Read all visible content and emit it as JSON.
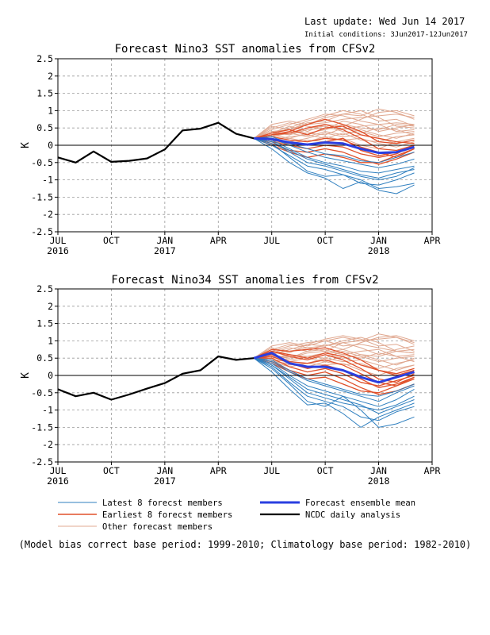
{
  "header": {
    "last_update": "Last update: Wed Jun 14 2017",
    "initial_conditions": "Initial conditions: 3Jun2017-12Jun2017"
  },
  "footer_note": "(Model bias correct base period: 1999-2010; Climatology base period: 1982-2010)",
  "colors": {
    "latest": "#2f7fbf",
    "earliest": "#e0502a",
    "other": "#e0a890",
    "mean": "#2a3fe0",
    "analysis": "#000000",
    "grid": "#9a9a9a"
  },
  "legend": [
    {
      "label": "Latest 8 forecst members",
      "key": "latest"
    },
    {
      "label": "Earliest 8 forecst members",
      "key": "earliest"
    },
    {
      "label": "Other forecast members",
      "key": "other"
    },
    {
      "label": "Forecast ensemble mean",
      "key": "mean"
    },
    {
      "label": "NCDC daily analysis",
      "key": "analysis"
    }
  ],
  "chart_data": [
    {
      "type": "line",
      "title": "Forecast Nino3 SST anomalies from CFSv2",
      "ylabel": "K",
      "ylim": [
        -2.5,
        2.5
      ],
      "yticks": [
        "2.5",
        "2",
        "1.5",
        "1",
        "0.5",
        "0",
        "-0.5",
        "-1",
        "-1.5",
        "-2",
        "-2.5"
      ],
      "xlim": [
        0,
        21
      ],
      "xticks": [
        {
          "x": 0,
          "label": "JUL",
          "sub": "2016"
        },
        {
          "x": 3,
          "label": "OCT",
          "sub": ""
        },
        {
          "x": 6,
          "label": "JAN",
          "sub": "2017"
        },
        {
          "x": 9,
          "label": "APR",
          "sub": ""
        },
        {
          "x": 12,
          "label": "JUL",
          "sub": ""
        },
        {
          "x": 15,
          "label": "OCT",
          "sub": ""
        },
        {
          "x": 18,
          "label": "JAN",
          "sub": "2018"
        },
        {
          "x": 21,
          "label": "APR",
          "sub": ""
        }
      ],
      "grid": true,
      "zero_line": true,
      "observed": {
        "x": [
          0,
          1,
          2,
          3,
          4,
          5,
          6,
          7,
          8,
          9,
          10,
          11
        ],
        "y": [
          -0.35,
          -0.5,
          -0.18,
          -0.48,
          -0.45,
          -0.38,
          -0.12,
          0.43,
          0.48,
          0.65,
          0.33,
          0.2
        ]
      },
      "forecast_x": [
        11,
        12,
        13,
        14,
        15,
        16,
        17,
        18,
        19,
        20
      ],
      "ensemble_mean": [
        0.2,
        0.18,
        0.08,
        0.02,
        0.08,
        0.05,
        -0.1,
        -0.22,
        -0.2,
        -0.05
      ],
      "members": {
        "latest": [
          [
            0.2,
            0.05,
            -0.35,
            -0.75,
            -0.9,
            -0.85,
            -1.0,
            -1.25,
            -1.2,
            -1.1
          ],
          [
            0.2,
            -0.1,
            -0.5,
            -0.8,
            -0.95,
            -1.25,
            -1.05,
            -1.3,
            -1.4,
            -1.15
          ],
          [
            0.2,
            0.1,
            -0.2,
            -0.5,
            -0.6,
            -0.75,
            -0.9,
            -1.0,
            -0.9,
            -0.65
          ],
          [
            0.2,
            0.15,
            -0.1,
            -0.35,
            -0.5,
            -0.6,
            -0.75,
            -0.8,
            -0.7,
            -0.6
          ],
          [
            0.2,
            0.0,
            -0.3,
            -0.6,
            -0.7,
            -0.85,
            -1.1,
            -1.15,
            -1.0,
            -0.8
          ],
          [
            0.2,
            0.2,
            0.0,
            -0.2,
            -0.35,
            -0.45,
            -0.55,
            -0.65,
            -0.55,
            -0.4
          ],
          [
            0.2,
            0.1,
            -0.15,
            -0.4,
            -0.55,
            -0.7,
            -0.85,
            -0.95,
            -0.8,
            -0.7
          ],
          [
            0.2,
            0.25,
            0.05,
            -0.1,
            -0.25,
            -0.3,
            -0.45,
            -0.5,
            -0.35,
            -0.2
          ]
        ],
        "earliest": [
          [
            0.2,
            0.3,
            0.35,
            0.5,
            0.6,
            0.45,
            0.2,
            -0.1,
            -0.15,
            0.0
          ],
          [
            0.2,
            0.15,
            0.05,
            0.0,
            0.1,
            0.2,
            -0.15,
            -0.3,
            -0.2,
            -0.05
          ],
          [
            0.2,
            0.3,
            0.4,
            0.6,
            0.75,
            0.6,
            0.4,
            0.1,
            0.05,
            0.15
          ],
          [
            0.2,
            0.05,
            -0.15,
            -0.2,
            -0.1,
            -0.2,
            -0.4,
            -0.55,
            -0.4,
            -0.2
          ],
          [
            0.2,
            0.25,
            0.15,
            0.1,
            0.2,
            0.15,
            -0.05,
            -0.2,
            -0.35,
            -0.1
          ],
          [
            0.2,
            0.0,
            -0.2,
            -0.35,
            -0.25,
            -0.35,
            -0.5,
            -0.5,
            -0.3,
            -0.1
          ],
          [
            0.2,
            0.35,
            0.45,
            0.3,
            0.5,
            0.55,
            0.3,
            0.2,
            0.1,
            0.05
          ],
          [
            0.2,
            0.1,
            0.0,
            -0.1,
            0.0,
            -0.05,
            -0.25,
            -0.35,
            -0.25,
            0.0
          ]
        ],
        "other": [
          [
            0.2,
            0.45,
            0.6,
            0.75,
            0.9,
            0.85,
            0.7,
            0.6,
            0.65,
            0.6
          ],
          [
            0.2,
            0.55,
            0.45,
            0.65,
            0.7,
            0.9,
            1.0,
            0.8,
            0.55,
            0.5
          ],
          [
            0.2,
            0.35,
            0.55,
            0.4,
            0.6,
            0.55,
            0.75,
            0.95,
            1.0,
            0.85
          ],
          [
            0.2,
            0.3,
            0.2,
            0.35,
            0.45,
            0.6,
            0.5,
            0.45,
            0.6,
            0.55
          ],
          [
            0.2,
            0.4,
            0.3,
            0.5,
            0.55,
            0.4,
            0.35,
            0.5,
            0.45,
            0.3
          ],
          [
            0.2,
            0.25,
            0.35,
            0.25,
            0.4,
            0.3,
            0.45,
            0.3,
            0.2,
            0.35
          ],
          [
            0.2,
            0.5,
            0.65,
            0.55,
            0.45,
            0.7,
            0.6,
            0.4,
            0.5,
            0.6
          ],
          [
            0.2,
            0.15,
            0.25,
            0.3,
            0.2,
            0.35,
            0.15,
            0.1,
            0.25,
            0.3
          ],
          [
            0.2,
            0.3,
            0.5,
            0.7,
            0.85,
            1.0,
            0.9,
            0.7,
            0.75,
            0.55
          ],
          [
            0.2,
            0.2,
            0.1,
            0.2,
            0.35,
            0.25,
            0.3,
            0.2,
            0.05,
            0.15
          ],
          [
            0.2,
            0.4,
            0.45,
            0.6,
            0.65,
            0.75,
            0.8,
            0.85,
            0.9,
            0.8
          ],
          [
            0.2,
            0.1,
            0.05,
            0.15,
            0.1,
            0.2,
            0.0,
            -0.1,
            0.1,
            0.2
          ],
          [
            0.2,
            0.35,
            0.3,
            0.45,
            0.5,
            0.45,
            0.55,
            0.6,
            0.4,
            0.45
          ],
          [
            0.2,
            0.6,
            0.7,
            0.6,
            0.8,
            0.9,
            0.85,
            1.05,
            0.95,
            0.75
          ],
          [
            0.2,
            0.25,
            0.4,
            0.35,
            0.3,
            0.5,
            0.4,
            0.25,
            0.35,
            0.4
          ],
          [
            0.2,
            0.15,
            0.2,
            0.1,
            0.25,
            0.15,
            0.2,
            0.05,
            -0.05,
            0.1
          ]
        ]
      }
    },
    {
      "type": "line",
      "title": "Forecast Nino34 SST anomalies from CFSv2",
      "ylabel": "K",
      "ylim": [
        -2.5,
        2.5
      ],
      "yticks": [
        "2.5",
        "2",
        "1.5",
        "1",
        "0.5",
        "0",
        "-0.5",
        "-1",
        "-1.5",
        "-2",
        "-2.5"
      ],
      "xlim": [
        0,
        21
      ],
      "xticks": [
        {
          "x": 0,
          "label": "JUL",
          "sub": "2016"
        },
        {
          "x": 3,
          "label": "OCT",
          "sub": ""
        },
        {
          "x": 6,
          "label": "JAN",
          "sub": "2017"
        },
        {
          "x": 9,
          "label": "APR",
          "sub": ""
        },
        {
          "x": 12,
          "label": "JUL",
          "sub": ""
        },
        {
          "x": 15,
          "label": "OCT",
          "sub": ""
        },
        {
          "x": 18,
          "label": "JAN",
          "sub": "2018"
        },
        {
          "x": 21,
          "label": "APR",
          "sub": ""
        }
      ],
      "grid": true,
      "zero_line": true,
      "observed": {
        "x": [
          0,
          1,
          2,
          3,
          4,
          5,
          6,
          7,
          8,
          9,
          10,
          11
        ],
        "y": [
          -0.4,
          -0.6,
          -0.5,
          -0.7,
          -0.55,
          -0.38,
          -0.22,
          0.05,
          0.15,
          0.55,
          0.45,
          0.5
        ]
      },
      "forecast_x": [
        11,
        12,
        13,
        14,
        15,
        16,
        17,
        18,
        19,
        20
      ],
      "ensemble_mean": [
        0.5,
        0.65,
        0.35,
        0.25,
        0.25,
        0.15,
        -0.05,
        -0.2,
        -0.05,
        0.1
      ],
      "members": {
        "latest": [
          [
            0.5,
            0.2,
            -0.25,
            -0.75,
            -0.9,
            -0.6,
            -1.0,
            -1.5,
            -1.4,
            -1.2
          ],
          [
            0.5,
            0.1,
            -0.4,
            -0.85,
            -0.8,
            -1.1,
            -1.5,
            -1.2,
            -1.0,
            -0.8
          ],
          [
            0.5,
            0.3,
            -0.1,
            -0.5,
            -0.65,
            -0.8,
            -0.9,
            -1.0,
            -0.85,
            -0.6
          ],
          [
            0.5,
            0.35,
            0.0,
            -0.3,
            -0.45,
            -0.6,
            -0.75,
            -0.9,
            -0.7,
            -0.4
          ],
          [
            0.5,
            0.25,
            -0.2,
            -0.6,
            -0.75,
            -0.9,
            -1.2,
            -1.3,
            -1.05,
            -0.9
          ],
          [
            0.5,
            0.45,
            0.15,
            -0.1,
            -0.25,
            -0.4,
            -0.55,
            -0.6,
            -0.45,
            -0.25
          ],
          [
            0.5,
            0.3,
            -0.05,
            -0.4,
            -0.55,
            -0.7,
            -0.85,
            -1.1,
            -0.9,
            -0.7
          ],
          [
            0.5,
            0.4,
            0.1,
            -0.15,
            -0.3,
            -0.45,
            -0.6,
            -0.75,
            -0.5,
            -0.3
          ]
        ],
        "earliest": [
          [
            0.5,
            0.7,
            0.55,
            0.45,
            0.6,
            0.45,
            0.2,
            -0.1,
            -0.2,
            0.05
          ],
          [
            0.5,
            0.55,
            0.35,
            0.2,
            0.3,
            0.15,
            -0.1,
            -0.35,
            -0.25,
            -0.05
          ],
          [
            0.5,
            0.75,
            0.7,
            0.75,
            0.8,
            0.65,
            0.45,
            0.15,
            0.05,
            0.2
          ],
          [
            0.5,
            0.4,
            0.15,
            0.0,
            0.1,
            -0.1,
            -0.35,
            -0.55,
            -0.45,
            -0.25
          ],
          [
            0.5,
            0.6,
            0.4,
            0.35,
            0.45,
            0.3,
            0.05,
            -0.2,
            -0.3,
            -0.1
          ],
          [
            0.5,
            0.35,
            0.1,
            -0.1,
            -0.05,
            -0.25,
            -0.45,
            -0.5,
            -0.3,
            -0.05
          ],
          [
            0.5,
            0.7,
            0.6,
            0.5,
            0.65,
            0.55,
            0.3,
            0.15,
            0.0,
            0.15
          ],
          [
            0.5,
            0.5,
            0.25,
            0.1,
            0.2,
            0.05,
            -0.2,
            -0.3,
            -0.15,
            0.0
          ]
        ],
        "other": [
          [
            0.5,
            0.7,
            0.85,
            0.95,
            1.0,
            0.85,
            0.9,
            0.8,
            0.7,
            0.65
          ],
          [
            0.5,
            0.8,
            0.65,
            0.9,
            0.85,
            1.0,
            1.1,
            0.95,
            0.7,
            0.75
          ],
          [
            0.5,
            0.65,
            0.8,
            0.7,
            0.9,
            0.75,
            0.95,
            1.1,
            1.15,
            1.0
          ],
          [
            0.5,
            0.55,
            0.45,
            0.55,
            0.65,
            0.75,
            0.6,
            0.55,
            0.7,
            0.65
          ],
          [
            0.5,
            0.6,
            0.5,
            0.7,
            0.75,
            0.6,
            0.5,
            0.65,
            0.55,
            0.4
          ],
          [
            0.5,
            0.5,
            0.55,
            0.45,
            0.6,
            0.5,
            0.6,
            0.45,
            0.3,
            0.5
          ],
          [
            0.5,
            0.75,
            0.9,
            0.8,
            0.7,
            0.95,
            0.8,
            0.6,
            0.75,
            0.85
          ],
          [
            0.5,
            0.45,
            0.4,
            0.5,
            0.4,
            0.55,
            0.3,
            0.2,
            0.35,
            0.45
          ],
          [
            0.5,
            0.6,
            0.75,
            0.9,
            1.05,
            1.15,
            1.05,
            0.85,
            0.9,
            0.7
          ],
          [
            0.5,
            0.45,
            0.3,
            0.35,
            0.5,
            0.4,
            0.45,
            0.3,
            0.15,
            0.3
          ],
          [
            0.5,
            0.65,
            0.7,
            0.8,
            0.85,
            0.95,
            1.0,
            1.05,
            1.1,
            0.95
          ],
          [
            0.5,
            0.4,
            0.25,
            0.35,
            0.3,
            0.35,
            0.15,
            0.0,
            0.2,
            0.3
          ],
          [
            0.5,
            0.55,
            0.5,
            0.65,
            0.7,
            0.6,
            0.7,
            0.75,
            0.55,
            0.6
          ],
          [
            0.5,
            0.85,
            0.95,
            0.85,
            1.0,
            1.1,
            1.0,
            1.2,
            1.1,
            0.9
          ],
          [
            0.5,
            0.5,
            0.6,
            0.55,
            0.5,
            0.7,
            0.55,
            0.4,
            0.5,
            0.55
          ],
          [
            0.5,
            0.4,
            0.35,
            0.25,
            0.4,
            0.3,
            0.35,
            0.15,
            0.05,
            0.2
          ]
        ]
      }
    }
  ]
}
